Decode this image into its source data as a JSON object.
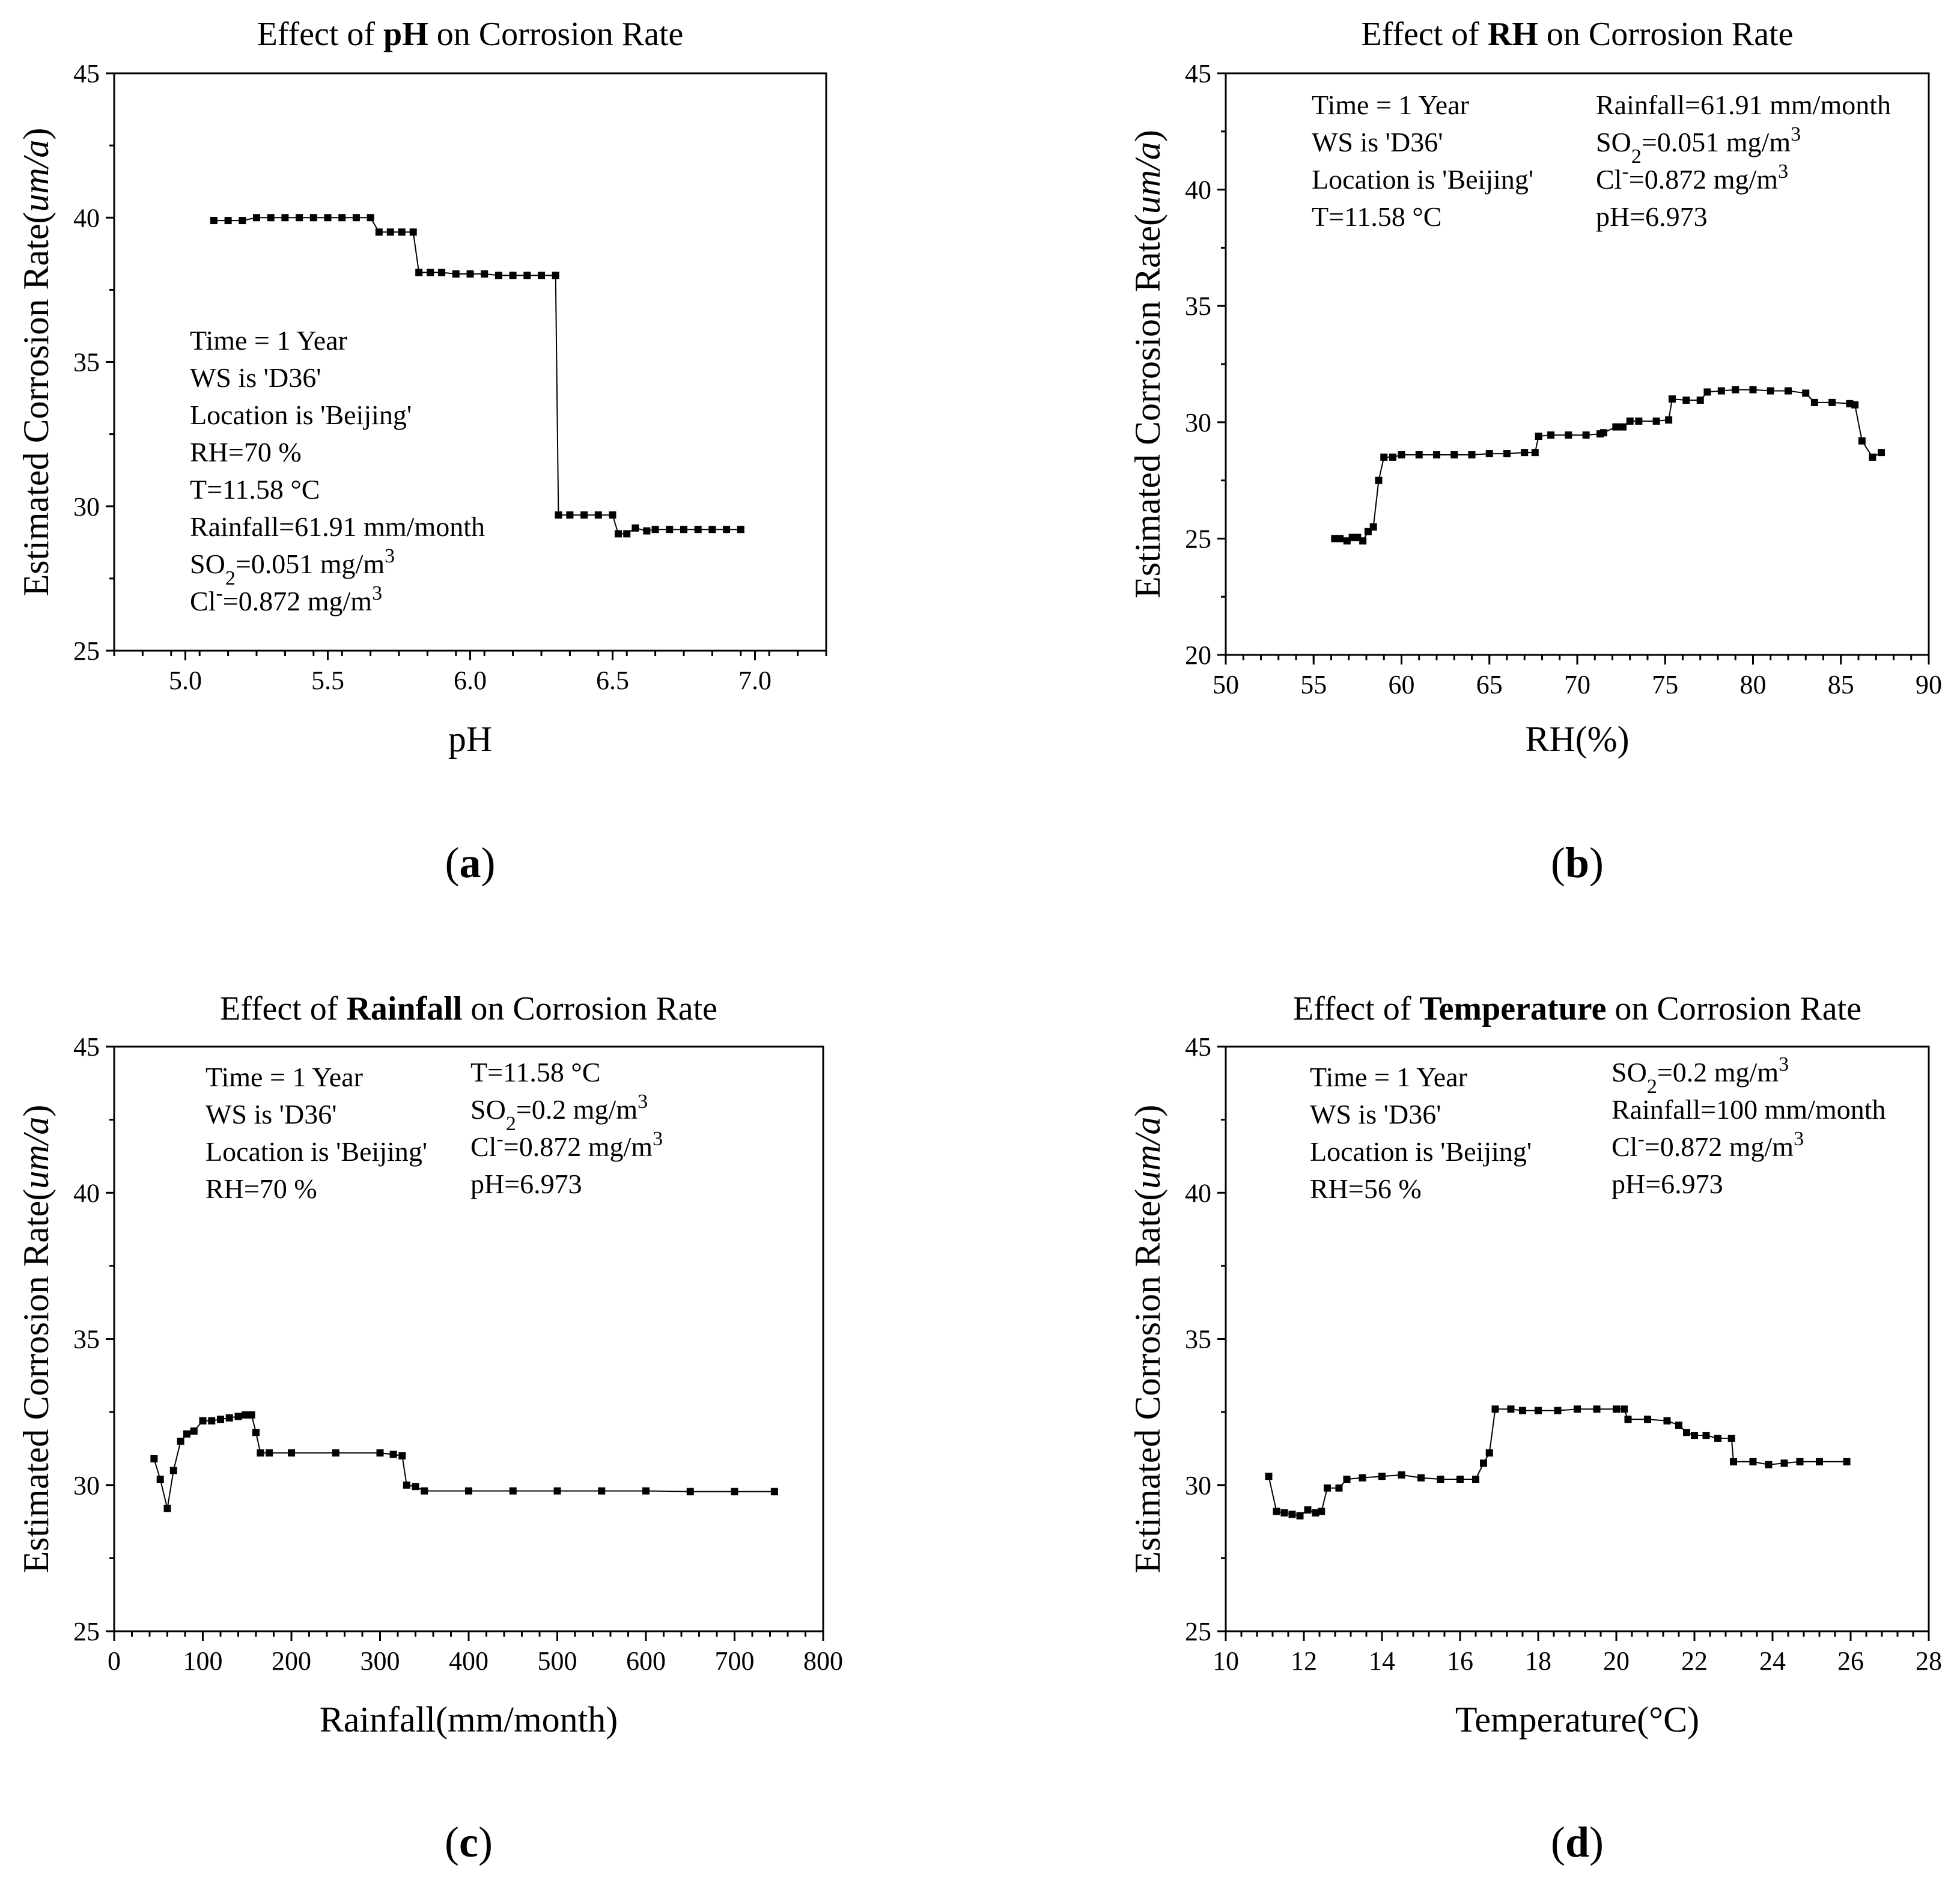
{
  "chart_data": [
    {
      "type": "line",
      "title": {
        "prefix": "Effect of ",
        "bold": "pH",
        "suffix": " on Corrosion Rate"
      },
      "xlabel": "pH",
      "ylabel": {
        "main": "Estimated Corrosion Rate(",
        "italic": "um/a",
        "close": ")"
      },
      "xlim": [
        4.75,
        7.25
      ],
      "ylim": [
        25,
        45
      ],
      "xticks": [
        "5.0",
        "5.5",
        "6.0",
        "6.5",
        "7.0"
      ],
      "yticks": [
        "25",
        "30",
        "35",
        "40",
        "45"
      ],
      "caption": "a",
      "annotations": [
        {
          "text": "Time = 1 Year"
        },
        {
          "text": "WS is 'D36'"
        },
        {
          "text": "Location is 'Beijing'"
        },
        {
          "text": "RH=70 %"
        },
        {
          "text": "T=11.58 °C"
        },
        {
          "text": "Rainfall=61.91 mm/month"
        },
        {
          "text": "SO",
          "sub": "2",
          "rest": "=0.051 mg/m",
          "sup": "3"
        },
        {
          "text": "Cl",
          "sup": "-",
          "rest": "=0.872 mg/m",
          "sup2": "3"
        }
      ],
      "series": [
        {
          "name": "Estimated corrosion rate",
          "x": [
            5.1,
            5.15,
            5.2,
            5.25,
            5.3,
            5.35,
            5.4,
            5.45,
            5.5,
            5.55,
            5.6,
            5.65,
            5.68,
            5.72,
            5.76,
            5.8,
            5.82,
            5.86,
            5.9,
            5.95,
            6.0,
            6.05,
            6.1,
            6.15,
            6.2,
            6.25,
            6.3,
            6.31,
            6.35,
            6.4,
            6.45,
            6.5,
            6.52,
            6.55,
            6.58,
            6.62,
            6.65,
            6.7,
            6.75,
            6.8,
            6.85,
            6.9,
            6.95
          ],
          "y": [
            39.9,
            39.9,
            39.9,
            40.0,
            40.0,
            40.0,
            40.0,
            40.0,
            40.0,
            40.0,
            40.0,
            40.0,
            39.5,
            39.5,
            39.5,
            39.5,
            38.1,
            38.1,
            38.1,
            38.05,
            38.05,
            38.05,
            38.0,
            38.0,
            38.0,
            38.0,
            38.0,
            29.7,
            29.7,
            29.7,
            29.7,
            29.7,
            29.05,
            29.05,
            29.25,
            29.15,
            29.2,
            29.2,
            29.2,
            29.2,
            29.2,
            29.2,
            29.2
          ]
        }
      ]
    },
    {
      "type": "line",
      "title": {
        "prefix": "Effect of ",
        "bold": "RH",
        "suffix": " on Corrosion Rate"
      },
      "xlabel": "RH(%)",
      "ylabel": {
        "main": "Estimated Corrosion Rate(",
        "italic": "um/a",
        "close": ")"
      },
      "xlim": [
        50,
        90
      ],
      "ylim": [
        20,
        45
      ],
      "xticks": [
        "50",
        "55",
        "60",
        "65",
        "70",
        "75",
        "80",
        "85",
        "90"
      ],
      "yticks": [
        "20",
        "25",
        "30",
        "35",
        "40",
        "45"
      ],
      "caption": "b",
      "annotations": [
        {
          "text": "Time = 1 Year"
        },
        {
          "text": "WS is 'D36'"
        },
        {
          "text": "Location is 'Beijing'"
        },
        {
          "text": "T=11.58 °C"
        },
        {
          "text": "Rainfall=61.91 mm/month"
        },
        {
          "text": "SO",
          "sub": "2",
          "rest": "=0.051 mg/m",
          "sup": "3"
        },
        {
          "text": "Cl",
          "sup": "-",
          "rest": "=0.872 mg/m",
          "sup2": "3"
        },
        {
          "text": "pH=6.973"
        }
      ],
      "series": [
        {
          "name": "Estimated corrosion rate",
          "x": [
            56.2,
            56.5,
            56.9,
            57.2,
            57.5,
            57.8,
            58.1,
            58.4,
            58.7,
            59.0,
            59.5,
            60,
            61,
            62,
            63,
            64,
            65,
            66,
            67,
            67.6,
            67.8,
            68.5,
            69.5,
            70.5,
            71.3,
            71.5,
            72.2,
            72.6,
            73.0,
            73.5,
            74.5,
            75.2,
            75.4,
            76.2,
            77.0,
            77.4,
            78.2,
            79.0,
            80.0,
            81.0,
            82.0,
            83.0,
            83.5,
            84.5,
            85.5,
            85.8,
            86.2,
            86.8,
            87.3
          ],
          "y": [
            25.0,
            25.0,
            24.9,
            25.05,
            25.05,
            24.9,
            25.3,
            25.5,
            27.5,
            28.5,
            28.5,
            28.6,
            28.6,
            28.6,
            28.6,
            28.6,
            28.65,
            28.65,
            28.7,
            28.7,
            29.4,
            29.45,
            29.45,
            29.45,
            29.5,
            29.55,
            29.8,
            29.8,
            30.05,
            30.05,
            30.05,
            30.1,
            31.0,
            30.95,
            30.95,
            31.3,
            31.35,
            31.4,
            31.4,
            31.35,
            31.35,
            31.25,
            30.85,
            30.85,
            30.8,
            30.75,
            29.2,
            28.5,
            28.7
          ]
        }
      ]
    },
    {
      "type": "line",
      "title": {
        "prefix": "Effect of ",
        "bold": "Rainfall",
        "suffix": " on Corrosion Rate"
      },
      "xlabel": "Rainfall(mm/month)",
      "ylabel": {
        "main": "Estimated Corrosion Rate(",
        "italic": "um/a",
        "close": ")"
      },
      "xlim": [
        0,
        800
      ],
      "ylim": [
        25,
        45
      ],
      "xticks": [
        "0",
        "100",
        "200",
        "300",
        "400",
        "500",
        "600",
        "700",
        "800"
      ],
      "yticks": [
        "25",
        "30",
        "35",
        "40",
        "45"
      ],
      "caption": "c",
      "annotations": [
        {
          "text": "Time = 1 Year"
        },
        {
          "text": "WS is 'D36'"
        },
        {
          "text": "Location is 'Beijing'"
        },
        {
          "text": "RH=70 %"
        },
        {
          "text": "T=11.58 °C"
        },
        {
          "text": "SO",
          "sub": "2",
          "rest": "=0.2 mg/m",
          "sup": "3"
        },
        {
          "text": "Cl",
          "sup": "-",
          "rest": "=0.872 mg/m",
          "sup2": "3"
        },
        {
          "text": "pH=6.973"
        }
      ],
      "series": [
        {
          "name": "Estimated corrosion rate",
          "x": [
            45,
            52,
            60,
            67,
            75,
            82,
            90,
            100,
            110,
            120,
            130,
            140,
            148,
            155,
            160,
            165,
            175,
            200,
            250,
            300,
            315,
            325,
            330,
            340,
            350,
            400,
            450,
            500,
            550,
            600,
            650,
            700,
            745
          ],
          "y": [
            30.9,
            30.2,
            29.2,
            30.5,
            31.5,
            31.75,
            31.85,
            32.2,
            32.2,
            32.25,
            32.3,
            32.35,
            32.4,
            32.4,
            31.8,
            31.1,
            31.1,
            31.1,
            31.1,
            31.1,
            31.05,
            31.0,
            30.0,
            29.95,
            29.8,
            29.8,
            29.8,
            29.8,
            29.8,
            29.8,
            29.78,
            29.78,
            29.78
          ]
        }
      ]
    },
    {
      "type": "line",
      "title": {
        "prefix": "Effect of ",
        "bold": "Temperature",
        "suffix": " on Corrosion Rate"
      },
      "xlabel": "Temperature(°C)",
      "ylabel": {
        "main": "Estimated Corrosion Rate(",
        "italic": "um/a",
        "close": ")"
      },
      "xlim": [
        10,
        28
      ],
      "ylim": [
        25,
        45
      ],
      "xticks": [
        "10",
        "12",
        "14",
        "16",
        "18",
        "20",
        "22",
        "24",
        "26",
        "28"
      ],
      "yticks": [
        "25",
        "30",
        "35",
        "40",
        "45"
      ],
      "caption": "d",
      "annotations": [
        {
          "text": "Time = 1 Year"
        },
        {
          "text": "WS is 'D36'"
        },
        {
          "text": "Location is 'Beijing'"
        },
        {
          "text": "RH=56 %"
        },
        {
          "text": "SO",
          "sub": "2",
          "rest": "=0.2 mg/m",
          "sup": "3"
        },
        {
          "text": "Rainfall=100 mm/month"
        },
        {
          "text": "Cl",
          "sup": "-",
          "rest": "=0.872 mg/m",
          "sup2": "3"
        },
        {
          "text": "pH=6.973"
        }
      ],
      "series": [
        {
          "name": "Estimated corrosion rate",
          "x": [
            11.1,
            11.3,
            11.5,
            11.7,
            11.9,
            12.1,
            12.3,
            12.45,
            12.6,
            12.9,
            13.1,
            13.5,
            14.0,
            14.5,
            15.0,
            15.5,
            16.0,
            16.4,
            16.6,
            16.75,
            16.9,
            17.3,
            17.6,
            18.0,
            18.5,
            19.0,
            19.5,
            20.0,
            20.2,
            20.3,
            20.8,
            21.3,
            21.6,
            21.8,
            22.0,
            22.3,
            22.6,
            22.95,
            23.0,
            23.5,
            23.9,
            24.3,
            24.7,
            25.2,
            25.9
          ],
          "y": [
            30.3,
            29.1,
            29.05,
            29.0,
            28.95,
            29.15,
            29.05,
            29.1,
            29.9,
            29.9,
            30.2,
            30.25,
            30.3,
            30.35,
            30.25,
            30.2,
            30.2,
            30.2,
            30.75,
            31.1,
            32.6,
            32.6,
            32.55,
            32.55,
            32.55,
            32.6,
            32.6,
            32.6,
            32.6,
            32.25,
            32.25,
            32.2,
            32.05,
            31.8,
            31.7,
            31.7,
            31.6,
            31.6,
            30.8,
            30.8,
            30.7,
            30.75,
            30.8,
            30.8,
            30.8
          ]
        }
      ]
    }
  ]
}
